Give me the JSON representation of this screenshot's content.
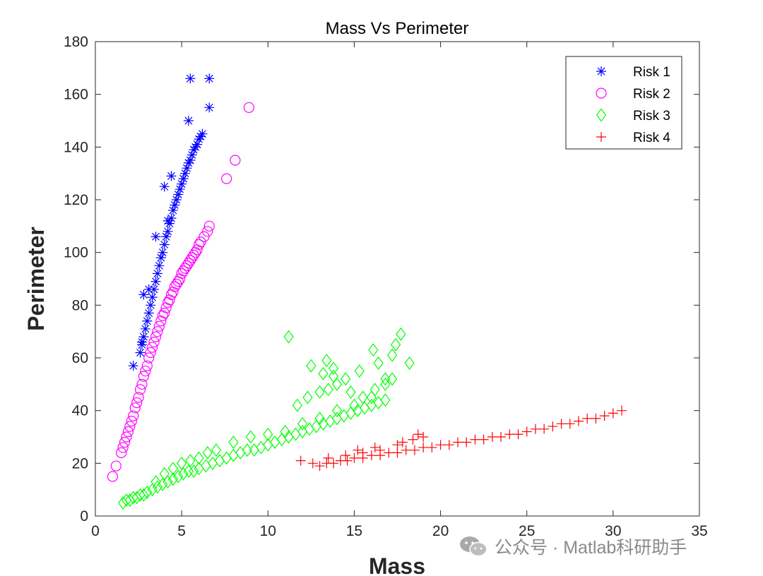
{
  "chart_data": {
    "type": "scatter",
    "title": "Mass Vs Perimeter",
    "xlabel": "Mass",
    "ylabel": "Perimeter",
    "xlim": [
      0,
      35
    ],
    "ylim": [
      0,
      180
    ],
    "xticks": [
      0,
      5,
      10,
      15,
      20,
      25,
      30,
      35
    ],
    "yticks": [
      0,
      20,
      40,
      60,
      80,
      100,
      120,
      140,
      160,
      180
    ],
    "grid": false,
    "legend_position": "top-right",
    "series": [
      {
        "name": "Risk 1",
        "marker": "asterisk",
        "color": "#0000ff",
        "x": [
          2.2,
          2.6,
          2.7,
          2.8,
          2.9,
          3.0,
          3.1,
          3.2,
          3.3,
          3.4,
          3.5,
          3.6,
          3.7,
          3.8,
          3.9,
          4.0,
          4.1,
          4.2,
          4.3,
          4.4,
          4.5,
          4.6,
          4.7,
          4.8,
          4.9,
          5.0,
          5.1,
          5.2,
          5.3,
          5.4,
          5.5,
          5.6,
          5.7,
          5.8,
          5.9,
          6.0,
          6.1,
          6.2,
          4.0,
          4.4,
          2.8,
          2.7,
          3.1,
          3.5,
          4.2,
          5.4,
          5.5,
          6.6,
          6.6
        ],
        "y": [
          57,
          62,
          65,
          68,
          71,
          74,
          77,
          80,
          83,
          86,
          89,
          92,
          95,
          98,
          100,
          103,
          106,
          108,
          111,
          113,
          116,
          118,
          120,
          122,
          124,
          126,
          128,
          130,
          132,
          134,
          135,
          137,
          139,
          140,
          141,
          143,
          144,
          145,
          125,
          129,
          84,
          66,
          86,
          106,
          112,
          150,
          166,
          166,
          155
        ]
      },
      {
        "name": "Risk 2",
        "marker": "circle",
        "color": "#ff00ff",
        "x": [
          1.0,
          1.2,
          1.5,
          1.6,
          1.7,
          1.8,
          1.9,
          2.0,
          2.1,
          2.2,
          2.3,
          2.4,
          2.5,
          2.6,
          2.7,
          2.8,
          2.9,
          3.0,
          3.1,
          3.2,
          3.3,
          3.4,
          3.5,
          3.6,
          3.7,
          3.8,
          3.9,
          4.0,
          4.1,
          4.2,
          4.3,
          4.4,
          4.5,
          4.6,
          4.7,
          4.8,
          4.9,
          5.0,
          5.1,
          5.2,
          5.3,
          5.4,
          5.5,
          5.6,
          5.7,
          5.8,
          5.9,
          6.0,
          6.1,
          6.3,
          6.5,
          6.6,
          7.6,
          8.1,
          8.9
        ],
        "y": [
          15,
          19,
          24,
          26,
          28,
          30,
          32,
          34,
          36,
          38,
          41,
          43,
          45,
          48,
          50,
          53,
          55,
          57,
          60,
          62,
          64,
          66,
          68,
          70,
          72,
          74,
          76,
          77,
          79,
          81,
          82,
          84,
          85,
          87,
          88,
          89,
          90,
          92,
          93,
          94,
          95,
          96,
          97,
          98,
          99,
          100,
          101,
          103,
          104,
          106,
          108,
          110,
          128,
          135,
          155
        ]
      },
      {
        "name": "Risk 3",
        "marker": "diamond",
        "color": "#00ff00",
        "x": [
          1.6,
          1.8,
          2.0,
          2.2,
          2.4,
          2.6,
          2.8,
          3.0,
          3.3,
          3.6,
          3.9,
          4.2,
          4.5,
          4.8,
          5.1,
          5.4,
          5.7,
          6.0,
          6.4,
          6.8,
          7.2,
          7.6,
          8.0,
          8.4,
          8.8,
          9.2,
          9.6,
          10.0,
          10.4,
          10.8,
          11.2,
          11.6,
          12.0,
          12.4,
          12.8,
          13.2,
          13.6,
          14.0,
          14.4,
          14.8,
          15.2,
          15.6,
          16.0,
          16.4,
          16.8,
          3.5,
          4.0,
          4.5,
          5.0,
          5.5,
          6.0,
          6.5,
          7.0,
          8.0,
          9.0,
          10.0,
          11.0,
          12.0,
          13.0,
          14.0,
          15.0,
          16.0,
          11.7,
          12.3,
          13.0,
          13.5,
          14.0,
          14.8,
          15.5,
          16.2,
          16.8,
          17.2,
          12.5,
          13.2,
          13.8,
          14.5,
          15.3,
          16.4,
          16.8,
          11.2,
          16.1,
          17.4,
          17.7,
          17.2,
          18.2,
          13.4,
          13.8
        ],
        "y": [
          5,
          6,
          6,
          7,
          7,
          8,
          8,
          9,
          10,
          11,
          12,
          13,
          14,
          15,
          16,
          17,
          17,
          18,
          19,
          20,
          21,
          22,
          23,
          24,
          25,
          25,
          26,
          27,
          28,
          29,
          30,
          31,
          32,
          33,
          34,
          35,
          36,
          37,
          38,
          39,
          40,
          41,
          42,
          43,
          44,
          13,
          16,
          18,
          20,
          21,
          22,
          24,
          25,
          28,
          30,
          31,
          32,
          35,
          37,
          40,
          42,
          45,
          42,
          45,
          47,
          48,
          50,
          47,
          45,
          48,
          50,
          52,
          57,
          54,
          56,
          52,
          55,
          58,
          52,
          68,
          63,
          65,
          69,
          61,
          58,
          59,
          53
        ]
      },
      {
        "name": "Risk 4",
        "marker": "plus",
        "color": "#ff0000",
        "x": [
          11.9,
          12.6,
          13.0,
          13.4,
          13.8,
          14.2,
          14.6,
          15.0,
          15.5,
          16.0,
          16.5,
          17.0,
          17.5,
          18.0,
          18.5,
          19.0,
          19.5,
          20.0,
          20.5,
          21.0,
          21.5,
          22.0,
          22.5,
          23.0,
          23.5,
          24.0,
          24.5,
          25.0,
          25.5,
          26.0,
          26.5,
          27.0,
          27.5,
          28.0,
          28.5,
          29.0,
          29.5,
          30.0,
          30.5,
          13.5,
          14.5,
          15.5,
          16.5,
          17.5,
          18.7,
          19.0,
          18.4,
          17.8,
          16.2,
          15.2
        ],
        "y": [
          21,
          20,
          19,
          20,
          20,
          21,
          21,
          22,
          22,
          23,
          23,
          24,
          24,
          25,
          25,
          26,
          26,
          27,
          27,
          28,
          28,
          29,
          29,
          30,
          30,
          31,
          31,
          32,
          33,
          33,
          34,
          35,
          35,
          36,
          37,
          37,
          38,
          39,
          40,
          22,
          23,
          24,
          25,
          27,
          31,
          30,
          29,
          28,
          26,
          25
        ]
      }
    ]
  },
  "watermark": {
    "text": "公众号 · Matlab科研助手",
    "icon": "wechat-icon"
  }
}
